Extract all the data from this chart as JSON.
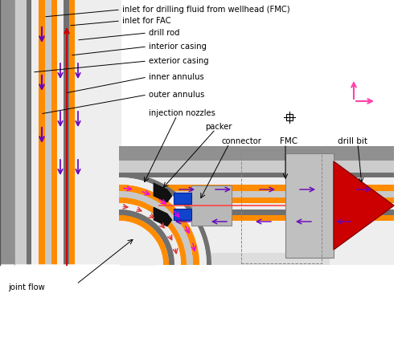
{
  "labels": {
    "inlet_fmc": "inlet for drilling fluid from wellhead (FMC)",
    "inlet_fac": "inlet for FAC",
    "drill_rod": "drill rod",
    "interior_casing": "interior casing",
    "exterior_casing": "exterior casing",
    "inner_annulus": "inner annulus",
    "outer_annulus": "outer annulus",
    "injection_nozzles": "injection nozzles",
    "packer": "packer",
    "connector": "connector",
    "fmc": "FMC",
    "drill_bit": "drill bit",
    "joint_flow": "joint flow"
  },
  "colors": {
    "gray_outer": "#999999",
    "gray_light": "#C8C8C8",
    "gray_mid": "#AAAAAA",
    "orange": "#FF8C00",
    "white": "#FFFFFF",
    "dark_gray": "#606060",
    "red_bit": "#CC0000",
    "blue": "#1144CC",
    "black": "#111111",
    "purple": "#6600BB",
    "magenta": "#EE00EE",
    "red_arrow": "#DD0000",
    "pink": "#FF55BB",
    "bg": "#FFFFFF"
  }
}
